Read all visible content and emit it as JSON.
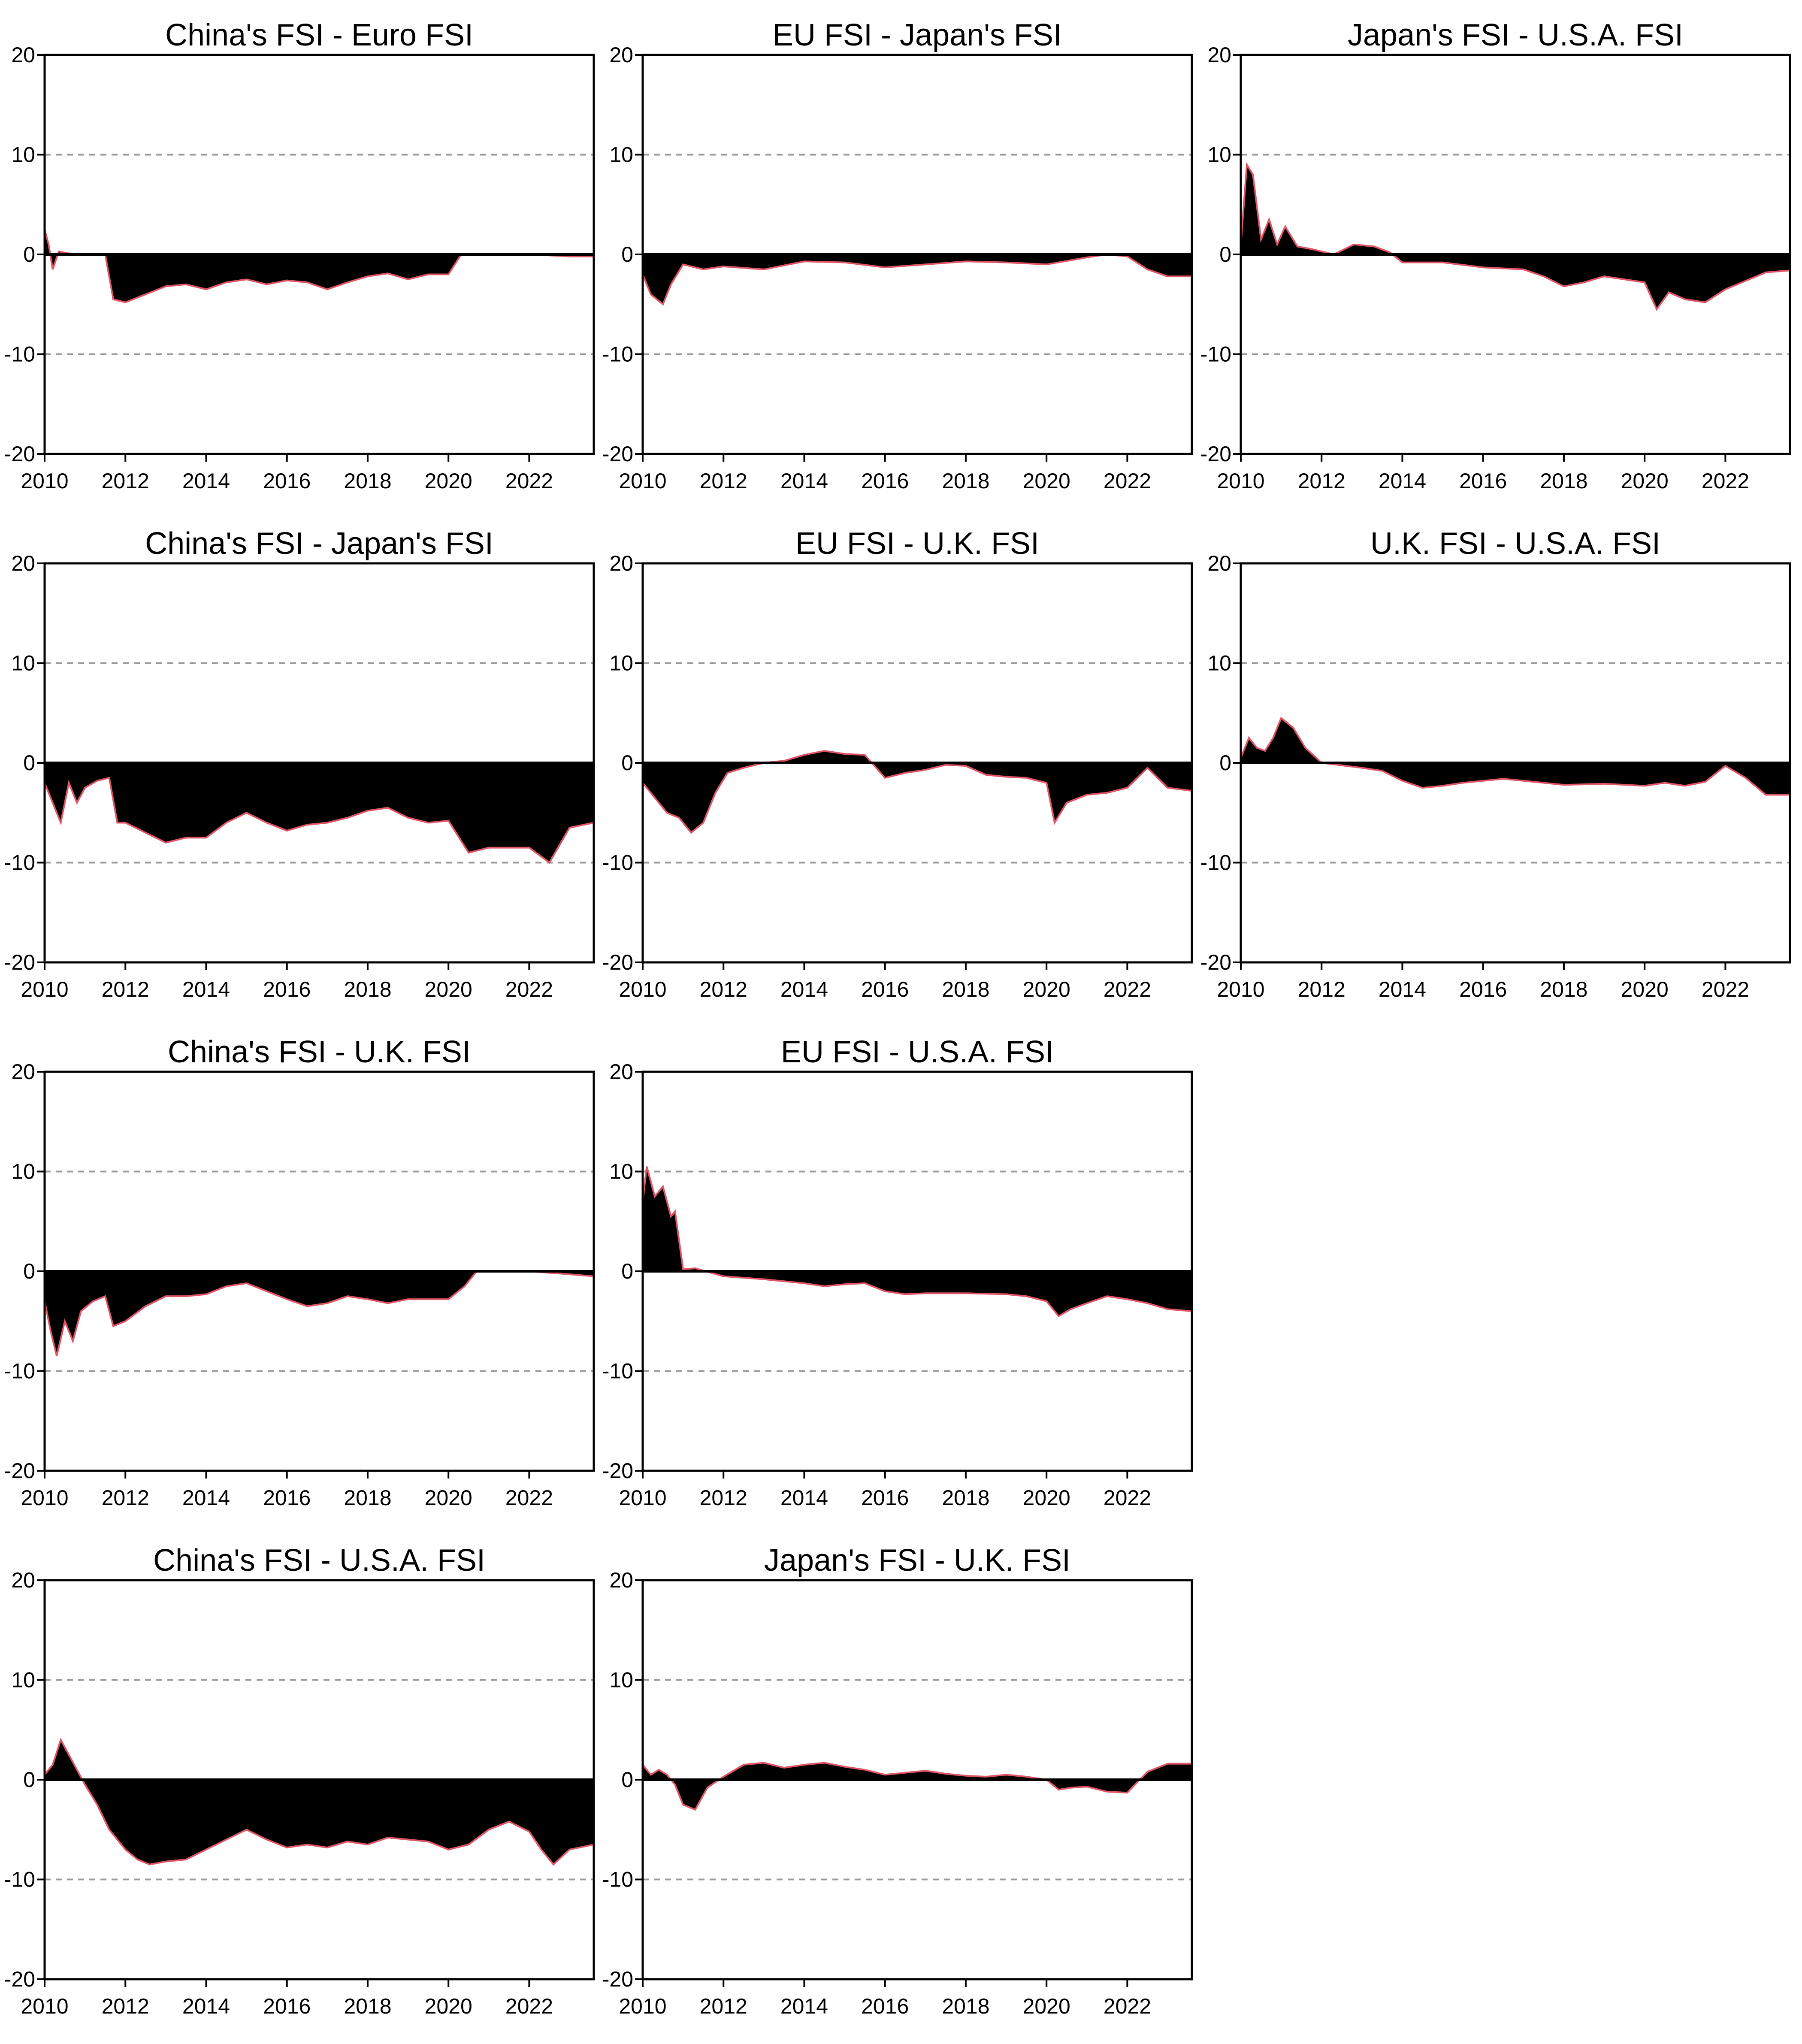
{
  "chart_data": [
    {
      "type": "area",
      "title": "China's FSI - Euro FSI",
      "x_ticks": [
        "2010",
        "2012",
        "2014",
        "2016",
        "2018",
        "2020",
        "2022"
      ],
      "y_ticks": [
        "20",
        "10",
        "0",
        "-10",
        "-20"
      ],
      "ylim": [
        -20,
        20
      ],
      "xlim": [
        2010,
        2023.6
      ],
      "grid": "y dashed",
      "x": [
        2010,
        2010.1,
        2010.2,
        2010.35,
        2010.6,
        2011,
        2011.5,
        2011.7,
        2012,
        2012.5,
        2013,
        2013.5,
        2014,
        2014.5,
        2015,
        2015.5,
        2016,
        2016.5,
        2017,
        2017.5,
        2018,
        2018.5,
        2019,
        2019.5,
        2020,
        2020.3,
        2021,
        2022,
        2023,
        2023.6
      ],
      "y": [
        2.5,
        1,
        -1.5,
        0.3,
        0.1,
        0,
        0,
        -4.5,
        -4.8,
        -4,
        -3.2,
        -3,
        -3.5,
        -2.8,
        -2.5,
        -3,
        -2.6,
        -2.8,
        -3.5,
        -2.8,
        -2.2,
        -1.9,
        -2.5,
        -2,
        -2,
        -0.1,
        0,
        0,
        -0.2,
        -0.2
      ]
    },
    {
      "type": "area",
      "title": "EU FSI - Japan's FSI",
      "x_ticks": [
        "2010",
        "2012",
        "2014",
        "2016",
        "2018",
        "2020",
        "2022"
      ],
      "y_ticks": [
        "20",
        "10",
        "0",
        "-10",
        "-20"
      ],
      "ylim": [
        -20,
        20
      ],
      "xlim": [
        2010,
        2023.6
      ],
      "grid": "y dashed",
      "x": [
        2010,
        2010.2,
        2010.5,
        2010.7,
        2011,
        2011.5,
        2012,
        2013,
        2014,
        2015,
        2016,
        2017,
        2018,
        2019,
        2020,
        2021,
        2021.5,
        2022,
        2022.5,
        2023,
        2023.6
      ],
      "y": [
        -2,
        -4,
        -5,
        -3,
        -1,
        -1.5,
        -1.2,
        -1.5,
        -0.7,
        -0.8,
        -1.3,
        -1.0,
        -0.7,
        -0.8,
        -1.0,
        -0.3,
        0,
        -0.2,
        -1.5,
        -2.2,
        -2.2
      ]
    },
    {
      "type": "area",
      "title": "Japan's FSI - U.S.A. FSI",
      "x_ticks": [
        "2010",
        "2012",
        "2014",
        "2016",
        "2018",
        "2020",
        "2022"
      ],
      "y_ticks": [
        "20",
        "10",
        "0",
        "-10",
        "-20"
      ],
      "ylim": [
        -20,
        20
      ],
      "xlim": [
        2010,
        2023.6
      ],
      "grid": "y dashed",
      "x": [
        2010,
        2010.15,
        2010.3,
        2010.5,
        2010.7,
        2010.9,
        2011.1,
        2011.4,
        2011.8,
        2012.3,
        2012.8,
        2013.3,
        2013.7,
        2014,
        2015,
        2016,
        2017,
        2017.5,
        2018,
        2018.5,
        2019,
        2019.5,
        2020,
        2020.3,
        2020.6,
        2021,
        2021.5,
        2022,
        2023,
        2023.6
      ],
      "y": [
        1,
        9,
        8,
        1.5,
        3.5,
        1,
        2.8,
        0.8,
        0.5,
        0,
        1,
        0.8,
        0.2,
        -0.8,
        -0.8,
        -1.3,
        -1.5,
        -2.2,
        -3.2,
        -2.8,
        -2.2,
        -2.5,
        -2.8,
        -5.5,
        -3.8,
        -4.5,
        -4.8,
        -3.5,
        -1.8,
        -1.6
      ]
    },
    {
      "type": "area",
      "title": "China's FSI - Japan's FSI",
      "x_ticks": [
        "2010",
        "2012",
        "2014",
        "2016",
        "2018",
        "2020",
        "2022"
      ],
      "y_ticks": [
        "20",
        "10",
        "0",
        "-10",
        "-20"
      ],
      "ylim": [
        -20,
        20
      ],
      "xlim": [
        2010,
        2023.6
      ],
      "grid": "y dashed",
      "x": [
        2010,
        2010.2,
        2010.4,
        2010.6,
        2010.8,
        2011,
        2011.3,
        2011.6,
        2011.8,
        2012,
        2012.5,
        2013,
        2013.5,
        2014,
        2014.5,
        2015,
        2015.5,
        2016,
        2016.5,
        2017,
        2017.5,
        2018,
        2018.5,
        2019,
        2019.5,
        2020,
        2020.5,
        2021,
        2021.5,
        2022,
        2022.5,
        2023,
        2023.6
      ],
      "y": [
        -2,
        -4,
        -6,
        -2,
        -4,
        -2.5,
        -1.8,
        -1.5,
        -6,
        -6,
        -7,
        -8,
        -7.5,
        -7.5,
        -6,
        -5,
        -6,
        -6.8,
        -6.2,
        -6,
        -5.5,
        -4.8,
        -4.5,
        -5.5,
        -6,
        -5.8,
        -9,
        -8.5,
        -8.5,
        -8.5,
        -10,
        -6.5,
        -6
      ]
    },
    {
      "type": "area",
      "title": "EU FSI - U.K. FSI",
      "x_ticks": [
        "2010",
        "2012",
        "2014",
        "2016",
        "2018",
        "2020",
        "2022"
      ],
      "y_ticks": [
        "20",
        "10",
        "0",
        "-10",
        "-20"
      ],
      "ylim": [
        -20,
        20
      ],
      "xlim": [
        2010,
        2023.6
      ],
      "grid": "y dashed",
      "x": [
        2010,
        2010.3,
        2010.6,
        2010.9,
        2011.2,
        2011.5,
        2011.8,
        2012.1,
        2012.5,
        2013,
        2013.5,
        2014,
        2014.5,
        2015,
        2015.5,
        2016,
        2016.5,
        2017,
        2017.5,
        2018,
        2018.5,
        2019,
        2019.5,
        2020,
        2020.2,
        2020.5,
        2021,
        2021.5,
        2022,
        2022.5,
        2023,
        2023.6
      ],
      "y": [
        -2,
        -3.5,
        -5,
        -5.5,
        -7,
        -6,
        -3,
        -1,
        -0.5,
        0,
        0.2,
        0.8,
        1.2,
        0.9,
        0.8,
        -1.5,
        -1,
        -0.7,
        -0.2,
        -0.3,
        -1.2,
        -1.4,
        -1.5,
        -2,
        -6,
        -4,
        -3.2,
        -3,
        -2.5,
        -0.5,
        -2.5,
        -2.8
      ]
    },
    {
      "type": "area",
      "title": "U.K. FSI - U.S.A. FSI",
      "x_ticks": [
        "2010",
        "2012",
        "2014",
        "2016",
        "2018",
        "2020",
        "2022"
      ],
      "y_ticks": [
        "20",
        "10",
        "0",
        "-10",
        "-20"
      ],
      "ylim": [
        -20,
        20
      ],
      "xlim": [
        2010,
        2023.6
      ],
      "grid": "y dashed",
      "x": [
        2010,
        2010.2,
        2010.4,
        2010.6,
        2010.8,
        2011,
        2011.3,
        2011.6,
        2012,
        2013,
        2013.5,
        2014,
        2014.5,
        2015,
        2015.5,
        2016,
        2016.5,
        2017,
        2018,
        2019,
        2020,
        2020.5,
        2021,
        2021.5,
        2022,
        2022.5,
        2023,
        2023.6
      ],
      "y": [
        0.5,
        2.5,
        1.5,
        1.2,
        2.5,
        4.5,
        3.5,
        1.5,
        0,
        -0.5,
        -0.8,
        -1.8,
        -2.5,
        -2.3,
        -2,
        -1.8,
        -1.6,
        -1.8,
        -2.2,
        -2.1,
        -2.3,
        -2.0,
        -2.3,
        -1.9,
        -0.3,
        -1.5,
        -3.2,
        -3.2
      ]
    },
    {
      "type": "area",
      "title": "China's FSI - U.K. FSI",
      "x_ticks": [
        "2010",
        "2012",
        "2014",
        "2016",
        "2018",
        "2020",
        "2022"
      ],
      "y_ticks": [
        "20",
        "10",
        "0",
        "-10",
        "-20"
      ],
      "ylim": [
        -20,
        20
      ],
      "xlim": [
        2010,
        2023.6
      ],
      "grid": "y dashed",
      "x": [
        2010,
        2010.15,
        2010.3,
        2010.5,
        2010.7,
        2010.9,
        2011.2,
        2011.5,
        2011.7,
        2012,
        2012.5,
        2013,
        2013.5,
        2014,
        2014.5,
        2015,
        2015.5,
        2016,
        2016.5,
        2017,
        2017.5,
        2018,
        2018.5,
        2019,
        2019.5,
        2020,
        2020.4,
        2020.7,
        2021,
        2022,
        2023,
        2023.6
      ],
      "y": [
        -3,
        -6,
        -8.5,
        -5,
        -7,
        -4,
        -3,
        -2.5,
        -5.5,
        -5,
        -3.5,
        -2.5,
        -2.5,
        -2.3,
        -1.5,
        -1.2,
        -2,
        -2.8,
        -3.5,
        -3.2,
        -2.5,
        -2.8,
        -3.2,
        -2.8,
        -2.8,
        -2.8,
        -1.5,
        0,
        0,
        0,
        -0.3,
        -0.5
      ]
    },
    {
      "type": "area",
      "title": "EU FSI - U.S.A. FSI",
      "x_ticks": [
        "2010",
        "2012",
        "2014",
        "2016",
        "2018",
        "2020",
        "2022"
      ],
      "y_ticks": [
        "20",
        "10",
        "0",
        "-10",
        "-20"
      ],
      "ylim": [
        -20,
        20
      ],
      "xlim": [
        2010,
        2023.6
      ],
      "grid": "y dashed",
      "x": [
        2010,
        2010.1,
        2010.3,
        2010.5,
        2010.7,
        2010.8,
        2011,
        2011.3,
        2012,
        2013,
        2014,
        2014.5,
        2015,
        2015.5,
        2016,
        2016.5,
        2017,
        2018,
        2019,
        2019.5,
        2020,
        2020.3,
        2020.6,
        2021,
        2021.5,
        2022,
        2022.5,
        2023,
        2023.6
      ],
      "y": [
        7,
        10.5,
        7.5,
        8.5,
        5.5,
        6,
        0.2,
        0.3,
        -0.5,
        -0.8,
        -1.2,
        -1.5,
        -1.3,
        -1.2,
        -2,
        -2.3,
        -2.2,
        -2.2,
        -2.3,
        -2.5,
        -3,
        -4.5,
        -3.8,
        -3.2,
        -2.5,
        -2.8,
        -3.2,
        -3.8,
        -4
      ]
    },
    {
      "type": "area",
      "title": "China's FSI - U.S.A. FSI",
      "x_ticks": [
        "2010",
        "2012",
        "2014",
        "2016",
        "2018",
        "2020",
        "2022"
      ],
      "y_ticks": [
        "20",
        "10",
        "0",
        "-10",
        "-20"
      ],
      "ylim": [
        -20,
        20
      ],
      "xlim": [
        2010,
        2023.6
      ],
      "grid": "y dashed",
      "x": [
        2010,
        2010.2,
        2010.4,
        2010.6,
        2010.8,
        2011,
        2011.3,
        2011.6,
        2012,
        2012.3,
        2012.6,
        2013,
        2013.5,
        2014,
        2014.5,
        2015,
        2015.5,
        2016,
        2016.5,
        2017,
        2017.5,
        2018,
        2018.5,
        2019,
        2019.5,
        2020,
        2020.5,
        2021,
        2021.5,
        2022,
        2022.3,
        2022.6,
        2023,
        2023.6
      ],
      "y": [
        0.5,
        1.5,
        4,
        2.5,
        1,
        -0.5,
        -2.5,
        -5,
        -7,
        -8,
        -8.5,
        -8.2,
        -8,
        -7,
        -6,
        -5,
        -6,
        -6.8,
        -6.5,
        -6.8,
        -6.2,
        -6.5,
        -5.8,
        -6,
        -6.2,
        -7,
        -6.5,
        -5,
        -4.2,
        -5.2,
        -7,
        -8.5,
        -7,
        -6.5
      ]
    },
    {
      "type": "area",
      "title": "Japan's FSI - U.K. FSI",
      "x_ticks": [
        "2010",
        "2012",
        "2014",
        "2016",
        "2018",
        "2020",
        "2022"
      ],
      "y_ticks": [
        "20",
        "10",
        "0",
        "-10",
        "-20"
      ],
      "ylim": [
        -20,
        20
      ],
      "xlim": [
        2010,
        2023.6
      ],
      "grid": "y dashed",
      "x": [
        2010,
        2010.2,
        2010.4,
        2010.6,
        2010.8,
        2011,
        2011.3,
        2011.6,
        2012,
        2012.5,
        2013,
        2013.5,
        2014,
        2014.5,
        2015,
        2015.5,
        2016,
        2016.5,
        2017,
        2017.5,
        2018,
        2018.5,
        2019,
        2019.5,
        2020,
        2020.3,
        2020.6,
        2021,
        2021.5,
        2022,
        2022.5,
        2023,
        2023.6
      ],
      "y": [
        1.5,
        0.5,
        1,
        0.5,
        -0.5,
        -2.5,
        -3,
        -0.8,
        0.3,
        1.5,
        1.7,
        1.2,
        1.5,
        1.7,
        1.3,
        1,
        0.5,
        0.7,
        0.9,
        0.6,
        0.4,
        0.3,
        0.5,
        0.3,
        0,
        -1,
        -0.8,
        -0.7,
        -1.2,
        -1.3,
        0.8,
        1.6,
        1.6
      ]
    }
  ]
}
